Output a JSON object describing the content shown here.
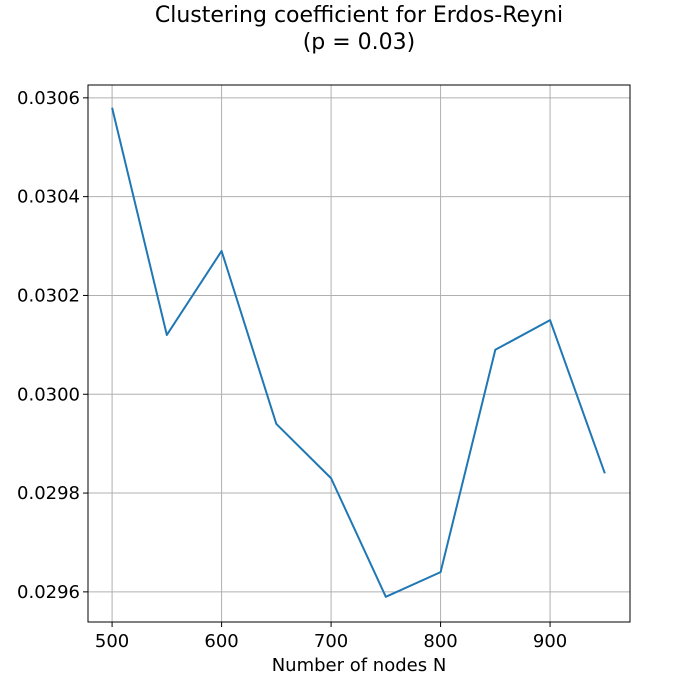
{
  "chart_data": {
    "type": "line",
    "title": "Clustering coefficient for Erdos-Reyni",
    "subtitle": "(p = 0.03)",
    "xlabel": "Number of nodes N",
    "ylabel": "",
    "x": [
      500,
      550,
      600,
      650,
      700,
      750,
      800,
      850,
      900,
      950
    ],
    "series": [
      {
        "values": [
          0.03058,
          0.03012,
          0.03029,
          0.02994,
          0.02983,
          0.02959,
          0.02964,
          0.03009,
          0.03015,
          0.02984
        ]
      }
    ],
    "xlim": [
      478,
      973
    ],
    "ylim": [
      0.029539,
      0.030626
    ],
    "xticks": [
      500,
      600,
      700,
      800,
      900
    ],
    "xtick_labels": [
      "500",
      "600",
      "700",
      "800",
      "900"
    ],
    "yticks": [
      0.0296,
      0.0298,
      0.03,
      0.0302,
      0.0304,
      0.0306
    ],
    "ytick_labels": [
      "0.0296",
      "0.0298",
      "0.0300",
      "0.0302",
      "0.0304",
      "0.0306"
    ],
    "grid": true,
    "line_color": "#1f77b4",
    "grid_color": "#b0b0b0"
  }
}
